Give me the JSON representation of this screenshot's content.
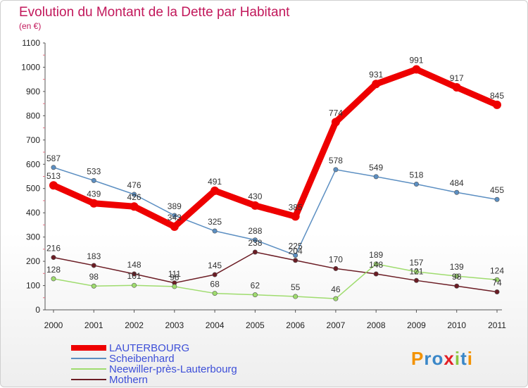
{
  "chart_data": {
    "type": "line",
    "title": "Evolution du Montant de la Dette par Habitant",
    "unit_label": "(en €)",
    "x": [
      "2000",
      "2001",
      "2002",
      "2003",
      "2004",
      "2005",
      "2006",
      "2007",
      "2008",
      "2009",
      "2010",
      "2011"
    ],
    "y_ticks": [
      "0",
      "100",
      "200",
      "300",
      "400",
      "500",
      "600",
      "700",
      "800",
      "900",
      "1000",
      "1100"
    ],
    "ylim": [
      0,
      1100
    ],
    "grid": false,
    "legend_position": "bottom-left",
    "series": [
      {
        "name": "LAUTERBOURG",
        "color": "#ee0000",
        "values": [
          513,
          439,
          426,
          343,
          491,
          430,
          385,
          774,
          931,
          991,
          917,
          845
        ]
      },
      {
        "name": "Scheibenhard",
        "color": "#5c8fc2",
        "values": [
          587,
          533,
          476,
          389,
          325,
          288,
          225,
          578,
          549,
          518,
          484,
          455
        ]
      },
      {
        "name": "Neewiller-près-Lauterbourg",
        "color": "#9fdc6e",
        "values": [
          128,
          98,
          101,
          96,
          68,
          62,
          55,
          46,
          189,
          157,
          139,
          124
        ]
      },
      {
        "name": "Mothern",
        "color": "#6b1c24",
        "values": [
          216,
          183,
          148,
          111,
          145,
          238,
          204,
          170,
          148,
          121,
          98,
          74
        ]
      }
    ]
  },
  "logo": {
    "text": "Proxiti"
  }
}
